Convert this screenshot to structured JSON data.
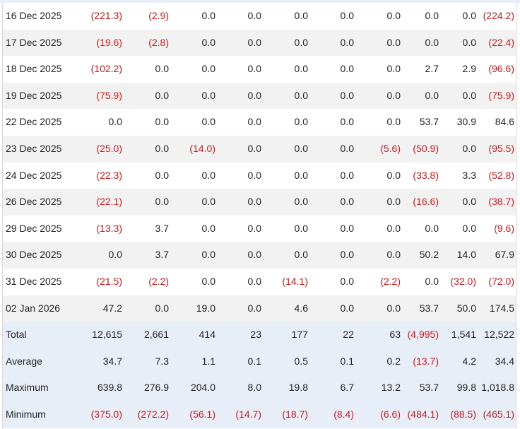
{
  "table": {
    "rows": [
      {
        "label": "16 Dec 2025",
        "cells": [
          "(221.3)",
          "(2.9)",
          "0.0",
          "0.0",
          "0.0",
          "0.0",
          "0.0",
          "0.0",
          "0.0",
          "(224.2)"
        ]
      },
      {
        "label": "17 Dec 2025",
        "cells": [
          "(19.6)",
          "(2.8)",
          "0.0",
          "0.0",
          "0.0",
          "0.0",
          "0.0",
          "0.0",
          "0.0",
          "(22.4)"
        ]
      },
      {
        "label": "18 Dec 2025",
        "cells": [
          "(102.2)",
          "0.0",
          "0.0",
          "0.0",
          "0.0",
          "0.0",
          "0.0",
          "2.7",
          "2.9",
          "(96.6)"
        ]
      },
      {
        "label": "19 Dec 2025",
        "cells": [
          "(75.9)",
          "0.0",
          "0.0",
          "0.0",
          "0.0",
          "0.0",
          "0.0",
          "0.0",
          "0.0",
          "(75.9)"
        ]
      },
      {
        "label": "22 Dec 2025",
        "cells": [
          "0.0",
          "0.0",
          "0.0",
          "0.0",
          "0.0",
          "0.0",
          "0.0",
          "53.7",
          "30.9",
          "84.6"
        ]
      },
      {
        "label": "23 Dec 2025",
        "cells": [
          "(25.0)",
          "0.0",
          "(14.0)",
          "0.0",
          "0.0",
          "0.0",
          "(5.6)",
          "(50.9)",
          "0.0",
          "(95.5)"
        ]
      },
      {
        "label": "24 Dec 2025",
        "cells": [
          "(22.3)",
          "0.0",
          "0.0",
          "0.0",
          "0.0",
          "0.0",
          "0.0",
          "(33.8)",
          "3.3",
          "(52.8)"
        ]
      },
      {
        "label": "26 Dec 2025",
        "cells": [
          "(22.1)",
          "0.0",
          "0.0",
          "0.0",
          "0.0",
          "0.0",
          "0.0",
          "(16.6)",
          "0.0",
          "(38.7)"
        ]
      },
      {
        "label": "29 Dec 2025",
        "cells": [
          "(13.3)",
          "3.7",
          "0.0",
          "0.0",
          "0.0",
          "0.0",
          "0.0",
          "0.0",
          "0.0",
          "(9.6)"
        ]
      },
      {
        "label": "30 Dec 2025",
        "cells": [
          "0.0",
          "3.7",
          "0.0",
          "0.0",
          "0.0",
          "0.0",
          "0.0",
          "50.2",
          "14.0",
          "67.9"
        ]
      },
      {
        "label": "31 Dec 2025",
        "cells": [
          "(21.5)",
          "(2.2)",
          "0.0",
          "0.0",
          "(14.1)",
          "0.0",
          "(2.2)",
          "0.0",
          "(32.0)",
          "(72.0)"
        ]
      },
      {
        "label": "02 Jan 2026",
        "cells": [
          "47.2",
          "0.0",
          "19.0",
          "0.0",
          "4.6",
          "0.0",
          "0.0",
          "53.7",
          "50.0",
          "174.5"
        ]
      }
    ],
    "summary": [
      {
        "label": "Total",
        "cells": [
          "12,615",
          "2,661",
          "414",
          "23",
          "177",
          "22",
          "63",
          "(4,995)",
          "1,541",
          "12,522"
        ]
      },
      {
        "label": "Average",
        "cells": [
          "34.7",
          "7.3",
          "1.1",
          "0.1",
          "0.5",
          "0.1",
          "0.2",
          "(13.7)",
          "4.2",
          "34.4"
        ]
      },
      {
        "label": "Maximum",
        "cells": [
          "639.8",
          "276.9",
          "204.0",
          "8.0",
          "19.8",
          "6.7",
          "13.2",
          "53.7",
          "99.8",
          "1,018.8"
        ]
      },
      {
        "label": "Minimum",
        "cells": [
          "(375.0)",
          "(272.2)",
          "(56.1)",
          "(14.7)",
          "(18.7)",
          "(8.4)",
          "(6.6)",
          "(484.1)",
          "(88.5)",
          "(465.1)"
        ]
      }
    ]
  }
}
